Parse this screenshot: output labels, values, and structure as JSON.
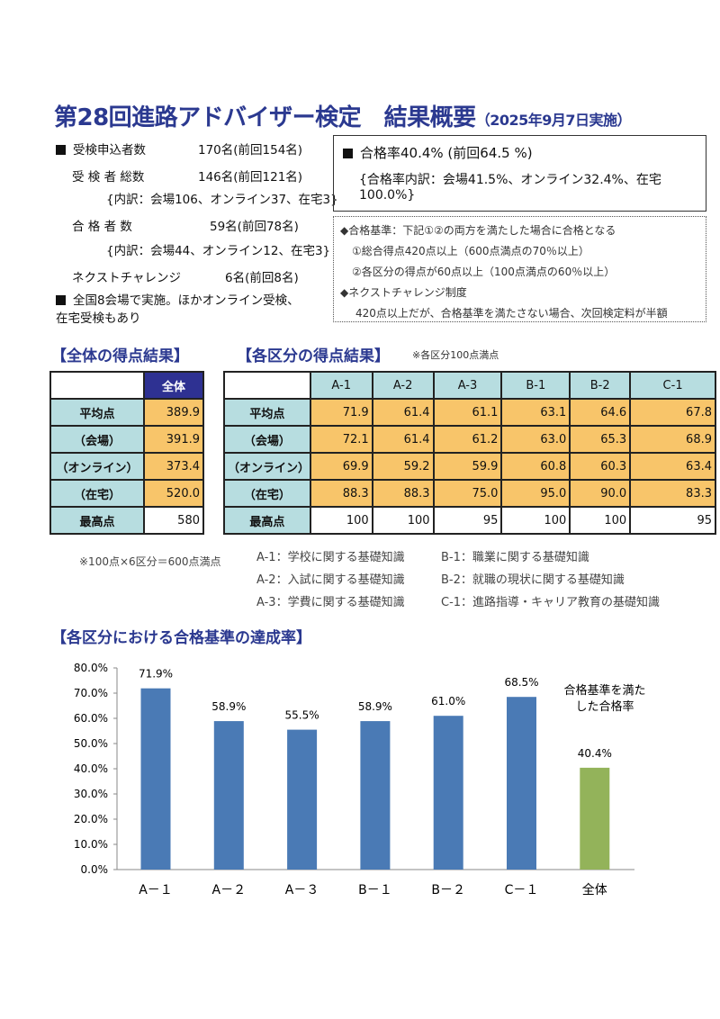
{
  "title": {
    "main": "第28回進路アドバイザー検定　結果概要",
    "date": "（2025年9月7日実施）"
  },
  "summary": [
    {
      "label": "受検申込者数",
      "value": "170名(前回154名)",
      "bullet": true
    },
    {
      "label": "受 検 者 総数",
      "value": "146名(前回121名)"
    },
    {
      "label": "",
      "value": "{内訳：会場106、オンライン37、在宅3}"
    },
    {
      "label": "合 格 者 数",
      "value": "59名(前回78名)"
    },
    {
      "label": "",
      "value": "{内訳：会場44、オンライン12、在宅3}"
    },
    {
      "label": "ネクストチャレンジ",
      "value": "6名(前回8名)"
    }
  ],
  "venue_note": [
    "全国8会場で実施。ほかオンライン受検、",
    "在宅受検もあり"
  ],
  "pass_box": {
    "rate": "合格率40.4% (前回64.5 %)",
    "breakdown1": "{合格率内訳：会場41.5%、オンライン32.4%、在宅",
    "breakdown2": "100.0%}"
  },
  "criteria": [
    "◆合格基準：下記①②の両方を満たした場合に合格となる",
    "①総合得点420点以上（600点満点の70％以上）",
    "②各区分の得点が60点以上（100点満点の60％以上）",
    "◆ネクストチャレンジ制度",
    "420点以上だが、合格基準を満たさない場合、次回検定料が半額"
  ],
  "overall": {
    "heading": "【全体の得点結果】",
    "col": "全体",
    "rows": [
      [
        "平均点",
        "389.9"
      ],
      [
        "（会場）",
        "391.9"
      ],
      [
        "（オンライン）",
        "373.4"
      ],
      [
        "（在宅）",
        "520.0"
      ],
      [
        "最高点",
        "580"
      ]
    ],
    "note": "※100点×6区分＝600点満点"
  },
  "sections": {
    "heading": "【各区分の得点結果】",
    "note": "※各区分100点満点",
    "cols": [
      "A-1",
      "A-2",
      "A-3",
      "B-1",
      "B-2",
      "C-1"
    ],
    "rows": [
      [
        "平均点",
        "71.9",
        "61.4",
        "61.1",
        "63.1",
        "64.6",
        "67.8"
      ],
      [
        "（会場）",
        "72.1",
        "61.4",
        "61.2",
        "63.0",
        "65.3",
        "68.9"
      ],
      [
        "（オンライン）",
        "69.9",
        "59.2",
        "59.9",
        "60.8",
        "60.3",
        "63.4"
      ],
      [
        "（在宅）",
        "88.3",
        "88.3",
        "75.0",
        "95.0",
        "90.0",
        "83.3"
      ],
      [
        "最高点",
        "100",
        "100",
        "95",
        "100",
        "100",
        "95"
      ]
    ]
  },
  "legend": [
    [
      "A-1：学校に関する基礎知識",
      "B-1：職業に関する基礎知識"
    ],
    [
      "A-2：入試に関する基礎知識",
      "B-2：就職の現状に関する基礎知識"
    ],
    [
      "A-3：学費に関する基礎知識",
      "C-1：進路指導・キャリア教育の基礎知識"
    ]
  ],
  "chart_heading": "【各区分における合格基準の達成率】",
  "chart_data": {
    "type": "bar",
    "title": "",
    "categories": [
      "A－１",
      "A－２",
      "A－３",
      "B－１",
      "B－２",
      "C－１",
      "全体"
    ],
    "values": [
      71.9,
      58.9,
      55.5,
      58.9,
      61.0,
      68.5,
      40.4
    ],
    "labels": [
      "71.9%",
      "58.9%",
      "55.5%",
      "58.9%",
      "61.0%",
      "68.5%",
      "40.4%"
    ],
    "ylim": [
      0,
      80
    ],
    "yticks": [
      "0.0%",
      "10.0%",
      "20.0%",
      "30.0%",
      "40.0%",
      "50.0%",
      "60.0%",
      "70.0%",
      "80.0%"
    ],
    "annotation": [
      "合格基準を満た",
      "した合格率"
    ],
    "colors": {
      "section": "#4a7ab5",
      "overall": "#93b35a"
    }
  }
}
